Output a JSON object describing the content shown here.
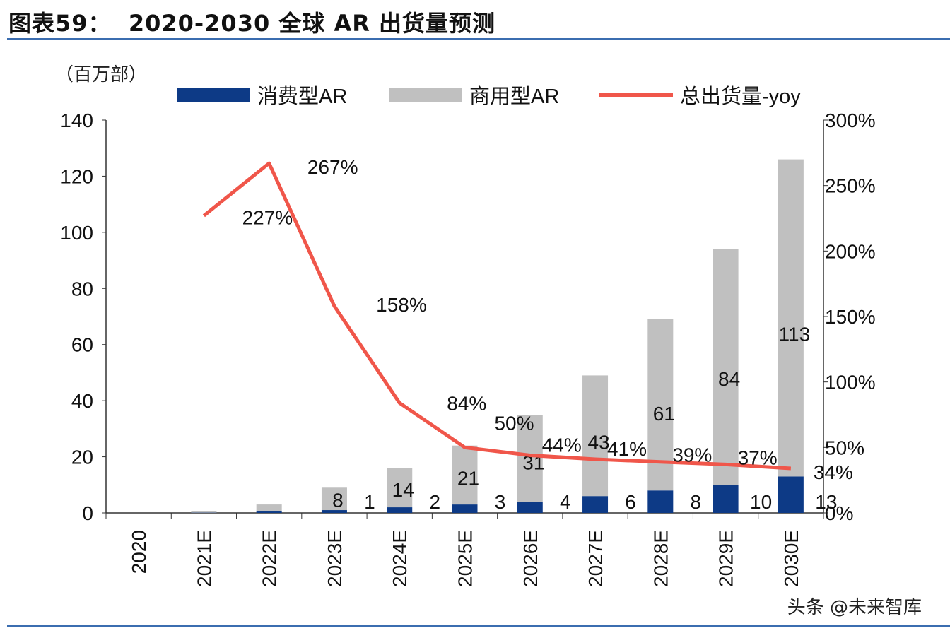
{
  "title": "图表59：  2020-2030 全球 AR 出货量预测",
  "watermark": "头条 @未来智库",
  "colors": {
    "consumer": "#0d3a86",
    "commercial": "#c0c0c0",
    "yoy": "#f0564a",
    "rule": "#3b6db0"
  },
  "chart_data": {
    "type": "bar",
    "stacked": true,
    "categories": [
      "2020",
      "2021E",
      "2022E",
      "2023E",
      "2024E",
      "2025E",
      "2026E",
      "2027E",
      "2028E",
      "2029E",
      "2030E"
    ],
    "unit_label": "（百万部）",
    "series": [
      {
        "name": "消费型AR",
        "type": "bar",
        "axis": "left",
        "values": [
          0,
          0.1,
          0.5,
          1,
          2,
          3,
          4,
          6,
          8,
          10,
          13
        ],
        "labels": [
          "",
          "",
          "",
          "1",
          "2",
          "3",
          "4",
          "6",
          "8",
          "10",
          "13"
        ]
      },
      {
        "name": "商用型AR",
        "type": "bar",
        "axis": "left",
        "values": [
          0,
          0.4,
          2.5,
          8,
          14,
          21,
          31,
          43,
          61,
          84,
          113
        ],
        "labels": [
          "",
          "",
          "",
          "8",
          "14",
          "21",
          "31",
          "43",
          "61",
          "84",
          "113"
        ]
      },
      {
        "name": "总出货量-yoy",
        "type": "line",
        "axis": "right",
        "values": [
          null,
          227,
          267,
          158,
          84,
          50,
          44,
          41,
          39,
          37,
          34
        ],
        "labels": [
          "",
          "227%",
          "267%",
          "158%",
          "84%",
          "50%",
          "44%",
          "41%",
          "39%",
          "37%",
          "34%"
        ]
      }
    ],
    "y_left": {
      "range": [
        0,
        140
      ],
      "ticks": [
        "0",
        "20",
        "40",
        "60",
        "80",
        "100",
        "120",
        "140"
      ]
    },
    "y_right": {
      "range": [
        0,
        300
      ],
      "ticks": [
        "0%",
        "50%",
        "100%",
        "150%",
        "200%",
        "250%",
        "300%"
      ]
    },
    "legend": "top",
    "grid": false
  }
}
